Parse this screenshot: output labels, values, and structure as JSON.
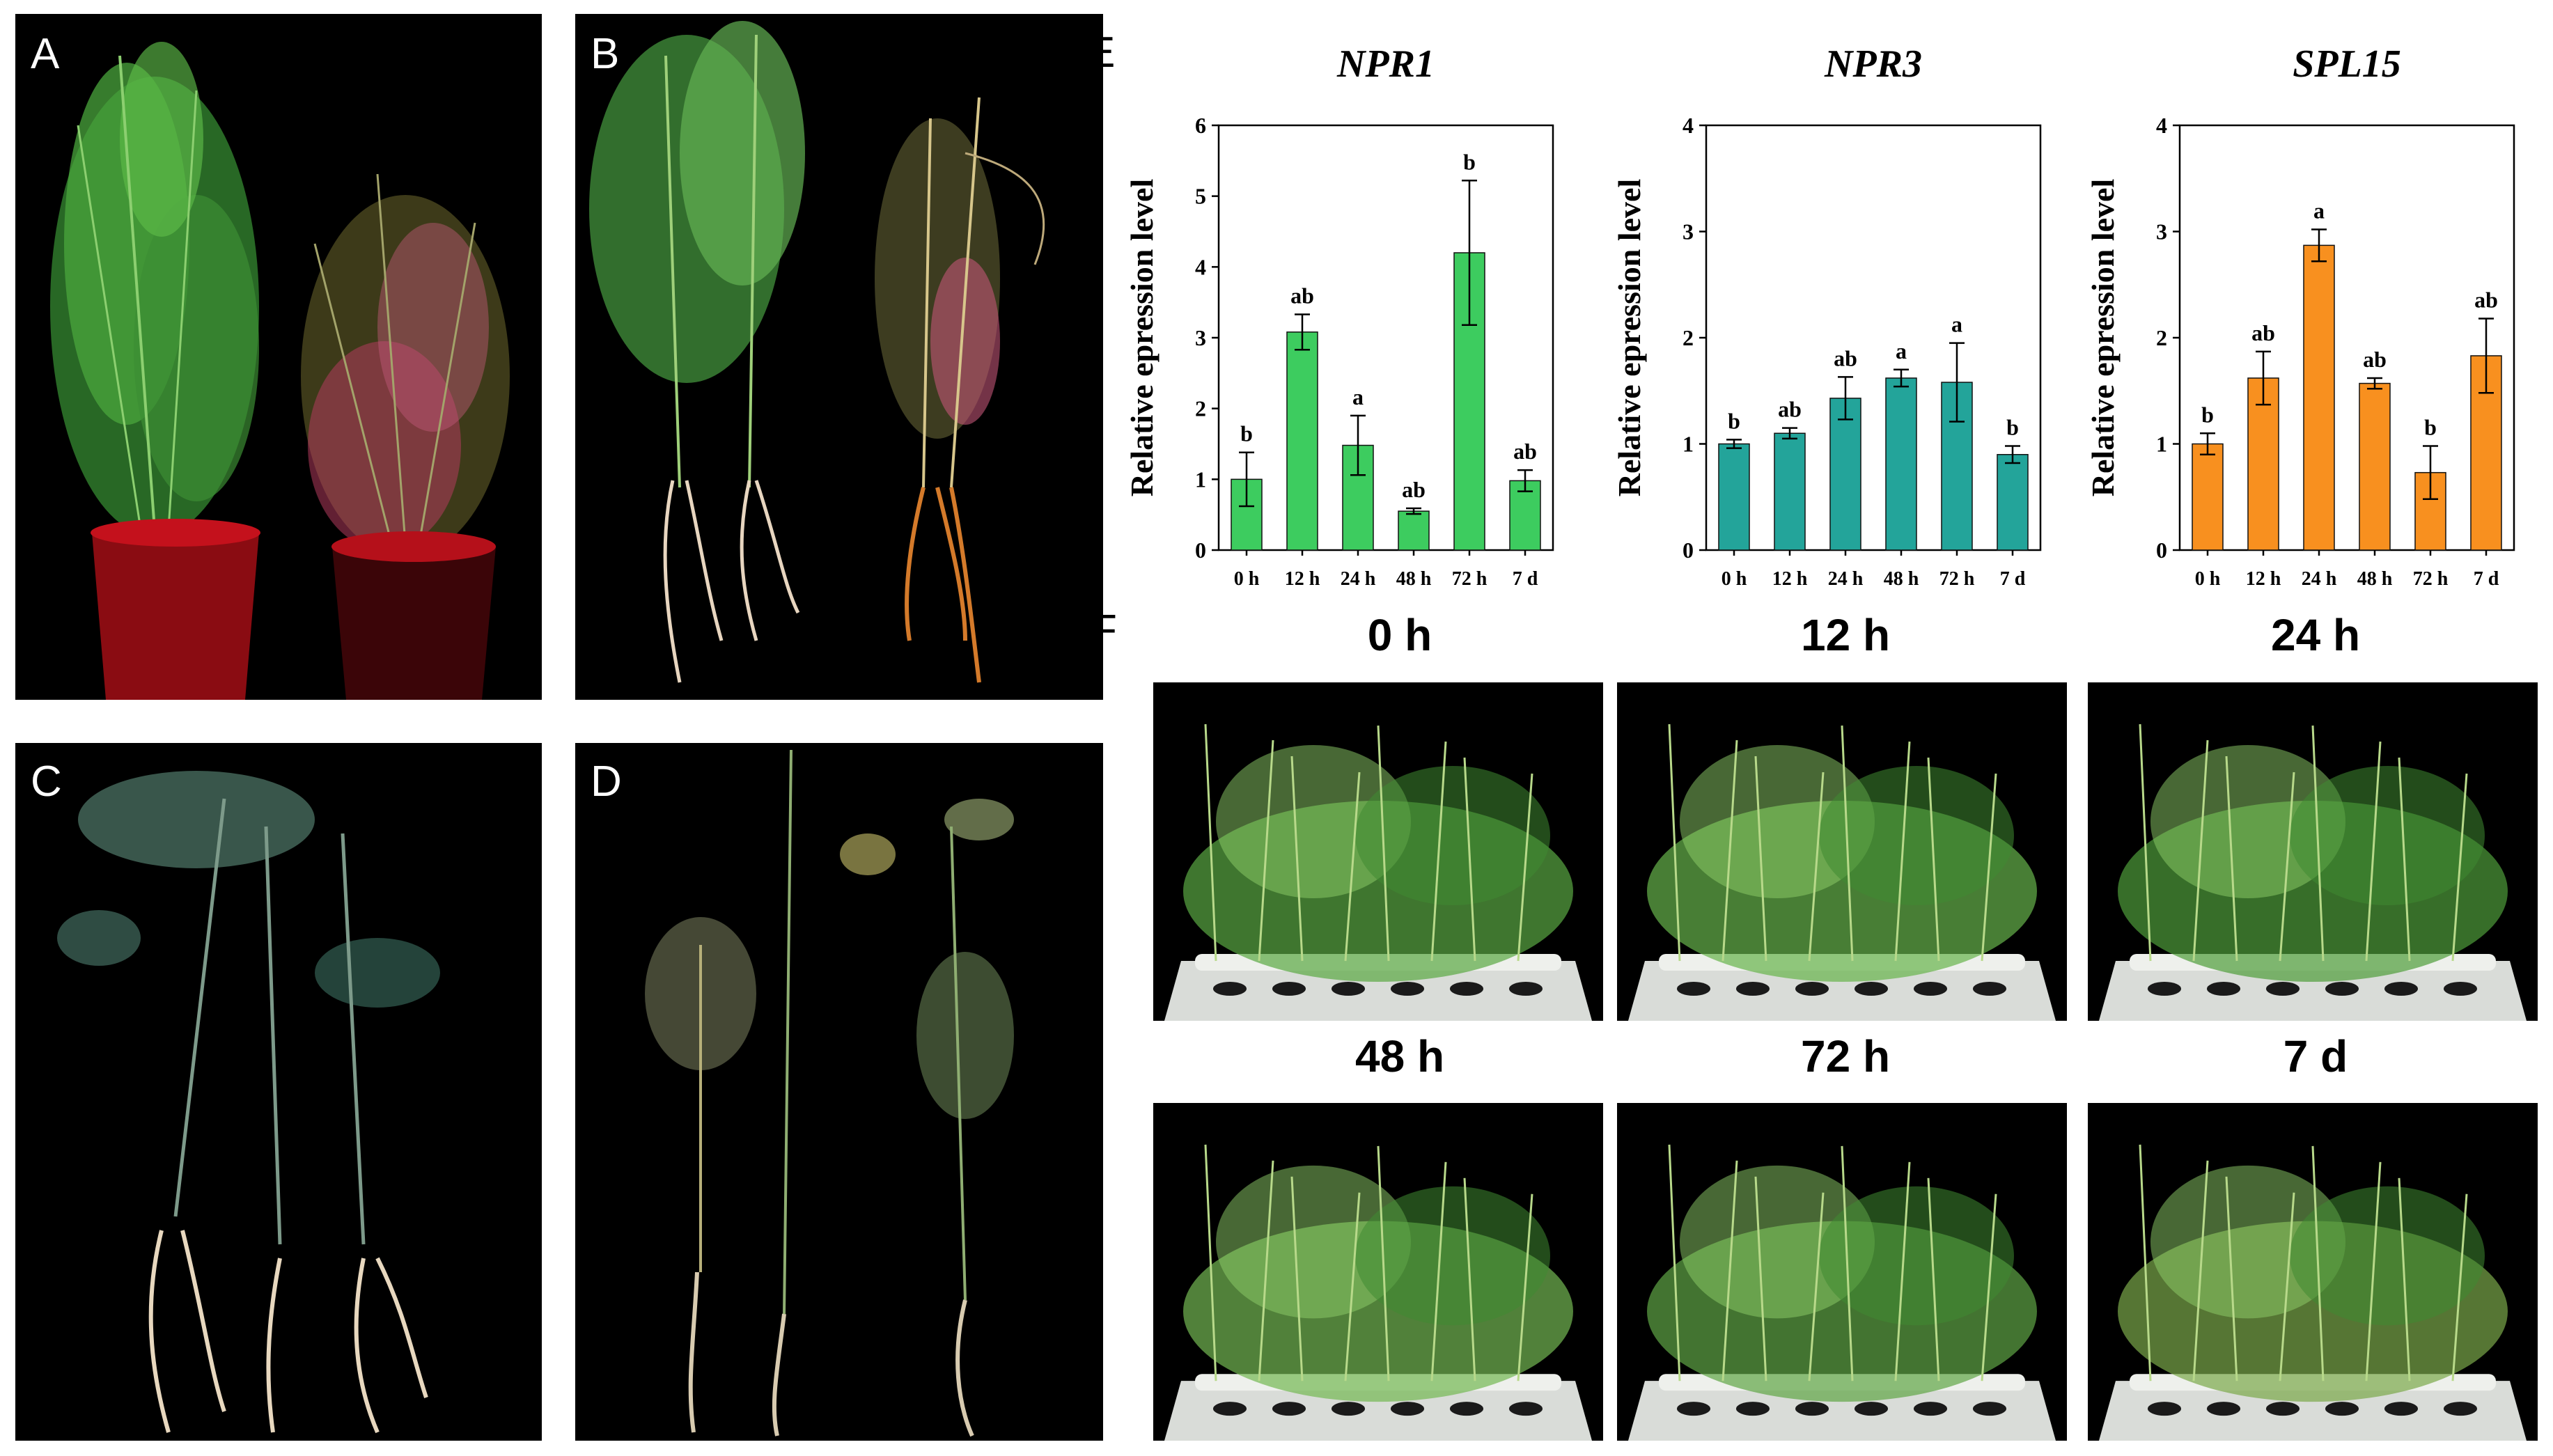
{
  "panels": {
    "A": {
      "label": "A"
    },
    "B": {
      "label": "B"
    },
    "C": {
      "label": "C"
    },
    "D": {
      "label": "D"
    },
    "E": {
      "label": "E"
    },
    "F": {
      "label": "F"
    }
  },
  "photo_times": [
    "0 h",
    "12 h",
    "24 h",
    "48 h",
    "72 h",
    "7 d"
  ],
  "chart_data": [
    {
      "type": "bar",
      "title": "NPR1",
      "ylabel": "Relative epression level",
      "xlabel": "",
      "categories": [
        "0 h",
        "12 h",
        "24 h",
        "48 h",
        "72 h",
        "7 d"
      ],
      "values": [
        1.0,
        3.08,
        1.48,
        0.55,
        4.2,
        0.98
      ],
      "errors": [
        0.38,
        0.25,
        0.42,
        0.04,
        1.02,
        0.15
      ],
      "sig_labels": [
        "b",
        "ab",
        "a",
        "ab",
        "b",
        "ab"
      ],
      "ylim": [
        0,
        6
      ],
      "yticks": [
        0,
        1,
        2,
        3,
        4,
        5,
        6
      ],
      "color": "#3dcc5f"
    },
    {
      "type": "bar",
      "title": "NPR3",
      "ylabel": "Relative epression level",
      "xlabel": "",
      "categories": [
        "0 h",
        "12 h",
        "24 h",
        "48 h",
        "72 h",
        "7 d"
      ],
      "values": [
        1.0,
        1.1,
        1.43,
        1.62,
        1.58,
        0.9
      ],
      "errors": [
        0.04,
        0.05,
        0.2,
        0.08,
        0.37,
        0.08
      ],
      "sig_labels": [
        "b",
        "ab",
        "ab",
        "a",
        "a",
        "b"
      ],
      "ylim": [
        0,
        4
      ],
      "yticks": [
        0,
        1,
        2,
        3,
        4
      ],
      "color": "#23a49a"
    },
    {
      "type": "bar",
      "title": "SPL15",
      "ylabel": "Relative epression level",
      "xlabel": "",
      "categories": [
        "0 h",
        "12 h",
        "24 h",
        "48 h",
        "72 h",
        "7 d"
      ],
      "values": [
        1.0,
        1.62,
        2.87,
        1.57,
        0.73,
        1.83
      ],
      "errors": [
        0.1,
        0.25,
        0.15,
        0.05,
        0.25,
        0.35
      ],
      "sig_labels": [
        "b",
        "ab",
        "a",
        "ab",
        "b",
        "ab"
      ],
      "ylim": [
        0,
        4
      ],
      "yticks": [
        0,
        1,
        2,
        3,
        4
      ],
      "color": "#f8901f"
    }
  ]
}
